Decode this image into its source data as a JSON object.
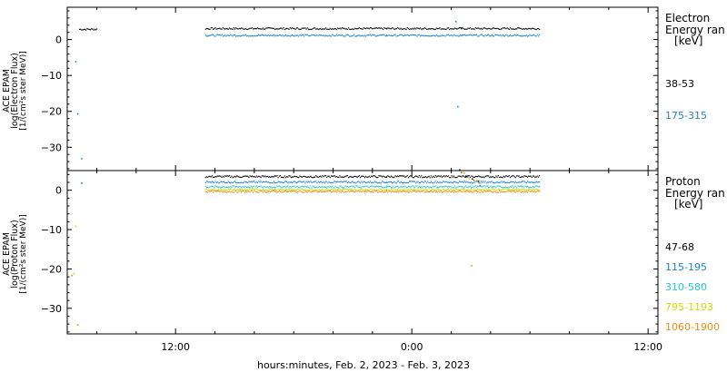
{
  "chart_data": [
    {
      "type": "scatter",
      "panel": "electron",
      "ylabel": [
        "ACE EPAM",
        "log(Electron Flux)",
        "[1/(cm²s ster MeV)]"
      ],
      "ylim": [
        -36.5,
        9
      ],
      "yticks": [
        0,
        -10,
        -20,
        -30
      ],
      "legend_title": [
        "Electron",
        "Energy ran",
        "[keV]"
      ],
      "series": [
        {
          "name": "38-53",
          "color": "#000000",
          "segments": [
            [
              7.1,
              8.0,
              3.0
            ],
            [
              13.5,
              22.7,
              3.2
            ],
            [
              22.7,
              26.5,
              3.2
            ],
            [
              26.5,
              30.5,
              3.2
            ]
          ]
        },
        {
          "name": "175-315",
          "color": "#1e7fd0",
          "segments": [
            [
              13.5,
              22.7,
              1.3
            ],
            [
              22.7,
              26.5,
              1.3
            ],
            [
              26.5,
              30.5,
              1.3
            ]
          ],
          "outliers": [
            [
              6.9,
              -6
            ],
            [
              7.0,
              -20.5
            ],
            [
              7.2,
              -33
            ],
            [
              26.3,
              -18.5
            ],
            [
              26.2,
              5.2
            ]
          ]
        }
      ]
    },
    {
      "type": "scatter",
      "panel": "proton",
      "ylabel": [
        "ACE EPAM",
        "log(Proton Flux)",
        "[1/(cm²s ster MeV)]"
      ],
      "xlabel": "hours:minutes, Feb.  2, 2023 - Feb.  3, 2023",
      "xticks": [
        "12:00",
        "0:00",
        "12:00"
      ],
      "ylim": [
        -36.5,
        5
      ],
      "yticks": [
        0,
        -10,
        -20,
        -30
      ],
      "legend_title": [
        "Proton",
        "Energy ran",
        "[keV]"
      ],
      "series": [
        {
          "name": "47-68",
          "color": "#000000",
          "segments": [
            [
              13.5,
              22.7,
              3.6
            ],
            [
              22.7,
              30.5,
              3.6
            ]
          ]
        },
        {
          "name": "115-195",
          "color": "#1e7fd0",
          "segments": [
            [
              13.5,
              22.7,
              2.2
            ],
            [
              22.7,
              30.5,
              2.2
            ]
          ],
          "outliers": [
            [
              7.2,
              2.0
            ]
          ]
        },
        {
          "name": "310-580",
          "color": "#22c5d8",
          "segments": [
            [
              13.5,
              22.7,
              1.0
            ],
            [
              22.7,
              30.5,
              1.0
            ]
          ]
        },
        {
          "name": "795-1193",
          "color": "#d8d800",
          "segments": [
            [
              13.5,
              22.7,
              0.3
            ],
            [
              22.7,
              30.5,
              0.3
            ]
          ],
          "outliers": [
            [
              6.9,
              -9
            ],
            [
              6.8,
              -21
            ]
          ]
        },
        {
          "name": "1060-1900",
          "color": "#f08c10",
          "segments": [
            [
              13.5,
              22.7,
              -0.2
            ],
            [
              22.7,
              30.5,
              -0.2
            ]
          ],
          "outliers": [
            [
              6.7,
              -21.5
            ],
            [
              27.0,
              -19
            ],
            [
              7.0,
              -34
            ]
          ]
        }
      ]
    }
  ],
  "xlim_hours": [
    6.5,
    36.5
  ]
}
